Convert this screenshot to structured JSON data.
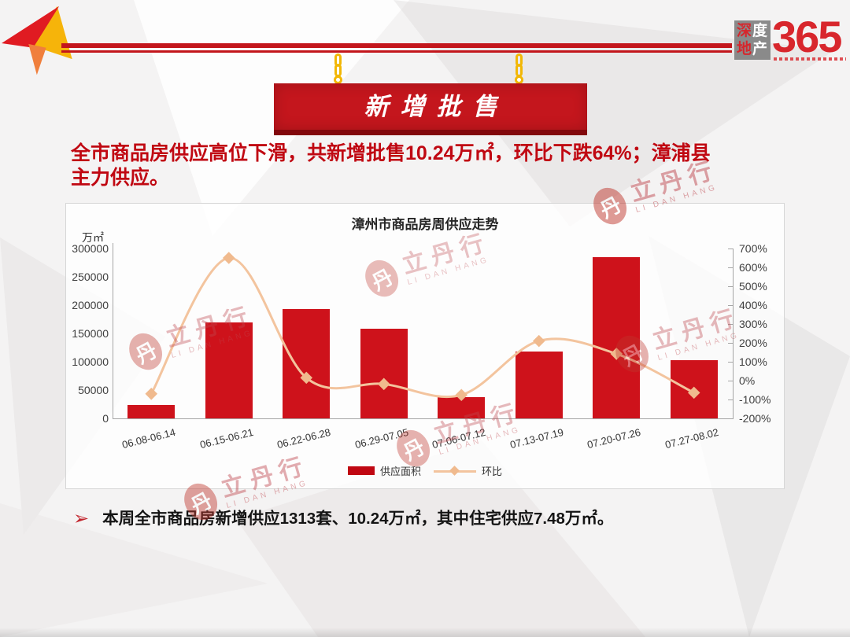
{
  "logo": {
    "rows": [
      [
        "深",
        "度"
      ],
      [
        "地",
        "产"
      ]
    ],
    "number": "365"
  },
  "banner": {
    "title": "新增批售"
  },
  "headline": {
    "line1": "全市商品房供应高位下滑，共新增批售10.24万㎡，环比下跌64%；漳浦县",
    "line2": "主力供应。"
  },
  "chart_data": {
    "type": "bar",
    "title": "漳州市商品房周供应走势",
    "y_left_label": "万㎡",
    "categories": [
      "06.08-06.14",
      "06.15-06.21",
      "06.22-06.28",
      "06.29-07.05",
      "07.06-07.12",
      "07.13-07.19",
      "07.20-07.26",
      "07.27-08.02"
    ],
    "series": [
      {
        "name": "供应面积",
        "type": "bar",
        "axis": "left",
        "values": [
          23000,
          170000,
          193000,
          158000,
          38000,
          118000,
          285000,
          102400
        ]
      },
      {
        "name": "环比",
        "type": "line",
        "axis": "right",
        "unit": "%",
        "values": [
          -70,
          650,
          15,
          -18,
          -76,
          210,
          142,
          -64
        ]
      }
    ],
    "y_left": {
      "min": 0,
      "max": 300000,
      "step": 50000,
      "ticks": [
        "300000",
        "250000",
        "200000",
        "150000",
        "100000",
        "50000",
        "0"
      ]
    },
    "y_right": {
      "min": -200,
      "max": 700,
      "step": 100,
      "ticks": [
        "700%",
        "600%",
        "500%",
        "400%",
        "300%",
        "200%",
        "100%",
        "0%",
        "-100%",
        "-200%"
      ]
    },
    "legend_position": "bottom",
    "grid": false
  },
  "watermark": {
    "stamp_char": "丹",
    "name": "立丹行",
    "name_en": "LI DAN HANG"
  },
  "bullet": {
    "marker": "➢",
    "text": "本周全市商品房新增供应1313套、10.24万㎡，其中住宅供应7.48万㎡。"
  },
  "colors": {
    "bar": "#ce121b",
    "line": "#f3c49e",
    "marker": "#f0ba8e",
    "banner_red": "#c4161d",
    "headline_red": "#c00812",
    "brand_red": "#d8262c",
    "axis_gray": "#a6a6a6"
  }
}
